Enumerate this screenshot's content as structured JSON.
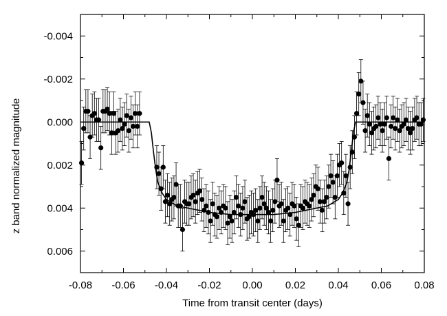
{
  "chart_data": {
    "type": "scatter",
    "xlabel": "Time from transit center (days)",
    "ylabel": "z band normalized magnitude",
    "xlim": [
      -0.08,
      0.08
    ],
    "ylim": [
      0.007,
      -0.005
    ],
    "y_inverted": true,
    "grid": false,
    "x_ticks": [
      -0.08,
      -0.06,
      -0.04,
      -0.02,
      0.0,
      0.02,
      0.04,
      0.06,
      0.08
    ],
    "x_tick_labels": [
      "-0.08",
      "-0.06",
      "-0.04",
      "-0.02",
      "0.00",
      "0.02",
      "0.04",
      "0.06",
      "0.08"
    ],
    "y_ticks": [
      -0.004,
      -0.002,
      0.0,
      0.002,
      0.004,
      0.006
    ],
    "y_tick_labels": [
      "-0.004",
      "-0.002",
      "0.000",
      "0.002",
      "0.004",
      "0.006"
    ],
    "series": [
      {
        "kind": "points_with_errorbars",
        "color": "#000000",
        "error": 0.001,
        "points": [
          [
            -0.0795,
            0.0019
          ],
          [
            -0.0785,
            0.0003
          ],
          [
            -0.0775,
            -0.0005
          ],
          [
            -0.0765,
            -0.0005
          ],
          [
            -0.0755,
            0.0007
          ],
          [
            -0.0745,
            -0.0003
          ],
          [
            -0.0735,
            -0.0004
          ],
          [
            -0.0725,
            -0.0001
          ],
          [
            -0.0715,
            -0.0001
          ],
          [
            -0.0705,
            0.0012
          ],
          [
            -0.0695,
            -0.0005
          ],
          [
            -0.0685,
            -0.0005
          ],
          [
            -0.0675,
            -0.0006
          ],
          [
            -0.0665,
            -0.0004
          ],
          [
            -0.0655,
            0.0005
          ],
          [
            -0.0645,
            -0.0004
          ],
          [
            -0.0635,
            0.0005
          ],
          [
            -0.0625,
            0.0004
          ],
          [
            -0.0615,
            -0.0001
          ],
          [
            -0.0605,
            0.0003
          ],
          [
            -0.0595,
            0.0001
          ],
          [
            -0.0585,
            -0.0003
          ],
          [
            -0.0575,
            0.0004
          ],
          [
            -0.0565,
            -0.0002
          ],
          [
            -0.0555,
            0.0002
          ],
          [
            -0.0545,
            -0.0004
          ],
          [
            -0.0535,
            0.0002
          ],
          [
            -0.0525,
            -0.0004
          ],
          [
            -0.0445,
            0.0021
          ],
          [
            -0.0435,
            0.0024
          ],
          [
            -0.0425,
            0.0031
          ],
          [
            -0.0415,
            0.0021
          ],
          [
            -0.0405,
            0.0037
          ],
          [
            -0.0395,
            0.0034
          ],
          [
            -0.0385,
            0.0038
          ],
          [
            -0.0375,
            0.0036
          ],
          [
            -0.0365,
            0.0035
          ],
          [
            -0.0355,
            0.0029
          ],
          [
            -0.0345,
            0.0039
          ],
          [
            -0.0335,
            0.0039
          ],
          [
            -0.0325,
            0.005
          ],
          [
            -0.0315,
            0.0037
          ],
          [
            -0.0305,
            0.0038
          ],
          [
            -0.0295,
            0.0038
          ],
          [
            -0.0285,
            0.0035
          ],
          [
            -0.0275,
            0.0034
          ],
          [
            -0.0265,
            0.0037
          ],
          [
            -0.0255,
            0.0033
          ],
          [
            -0.0245,
            0.0032
          ],
          [
            -0.0235,
            0.0036
          ],
          [
            -0.0225,
            0.0041
          ],
          [
            -0.0215,
            0.0039
          ],
          [
            -0.0205,
            0.0042
          ],
          [
            -0.0195,
            0.0046
          ],
          [
            -0.0185,
            0.0038
          ],
          [
            -0.0175,
            0.0043
          ],
          [
            -0.0165,
            0.0044
          ],
          [
            -0.0155,
            0.004
          ],
          [
            -0.0145,
            0.0042
          ],
          [
            -0.0135,
            0.0039
          ],
          [
            -0.0125,
            0.004
          ],
          [
            -0.0115,
            0.0047
          ],
          [
            -0.0105,
            0.0044
          ],
          [
            -0.0095,
            0.0046
          ],
          [
            -0.0085,
            0.0042
          ],
          [
            -0.0075,
            0.0035
          ],
          [
            -0.0065,
            0.0039
          ],
          [
            -0.0055,
            0.0043
          ],
          [
            -0.0045,
            0.004
          ],
          [
            -0.0035,
            0.0037
          ],
          [
            -0.0025,
            0.0045
          ],
          [
            -0.0015,
            0.0044
          ],
          [
            -0.0005,
            0.0042
          ],
          [
            0.0005,
            0.0043
          ],
          [
            0.0015,
            0.0041
          ],
          [
            0.0025,
            0.0046
          ],
          [
            0.0035,
            0.004
          ],
          [
            0.0045,
            0.0035
          ],
          [
            0.0055,
            0.0038
          ],
          [
            0.0065,
            0.004
          ],
          [
            0.0075,
            0.0042
          ],
          [
            0.0085,
            0.0046
          ],
          [
            0.0095,
            0.0041
          ],
          [
            0.0105,
            0.0037
          ],
          [
            0.0115,
            0.0027
          ],
          [
            0.0125,
            0.0039
          ],
          [
            0.0135,
            0.0038
          ],
          [
            0.0145,
            0.0046
          ],
          [
            0.0155,
            0.0041
          ],
          [
            0.0165,
            0.004
          ],
          [
            0.0175,
            0.0043
          ],
          [
            0.0185,
            0.0038
          ],
          [
            0.0195,
            0.0039
          ],
          [
            0.0205,
            0.0045
          ],
          [
            0.0215,
            0.0048
          ],
          [
            0.0225,
            0.0039
          ],
          [
            0.0235,
            0.004
          ],
          [
            0.0245,
            0.0037
          ],
          [
            0.0255,
            0.0038
          ],
          [
            0.0265,
            0.0039
          ],
          [
            0.0275,
            0.0036
          ],
          [
            0.0285,
            0.0034
          ],
          [
            0.0295,
            0.003
          ],
          [
            0.0305,
            0.0031
          ],
          [
            0.0315,
            0.0037
          ],
          [
            0.0325,
            0.0041
          ],
          [
            0.0335,
            0.0037
          ],
          [
            0.0345,
            0.0035
          ],
          [
            0.0355,
            0.003
          ],
          [
            0.0365,
            0.0025
          ],
          [
            0.0375,
            0.0028
          ],
          [
            0.0385,
            0.0035
          ],
          [
            0.0395,
            0.0025
          ],
          [
            0.0405,
            0.002
          ],
          [
            0.0415,
            0.0019
          ],
          [
            0.0425,
            0.0033
          ],
          [
            0.0435,
            0.0025
          ],
          [
            0.0445,
            0.0038
          ],
          [
            0.0455,
            0.0021
          ],
          [
            0.0465,
            0.0014
          ],
          [
            0.0475,
            0.0007
          ],
          [
            0.0485,
            -0.0004
          ],
          [
            0.0495,
            -0.0013
          ],
          [
            0.0505,
            -0.0019
          ],
          [
            0.0515,
            -0.0009
          ],
          [
            0.0525,
            0.0004
          ],
          [
            0.0535,
            -0.0003
          ],
          [
            0.0545,
            0.0001
          ],
          [
            0.0555,
            0.0005
          ],
          [
            0.0565,
            0.0003
          ],
          [
            0.0575,
            0.0002
          ],
          [
            0.0585,
            -0.0002
          ],
          [
            0.0595,
            0.0001
          ],
          [
            0.0605,
            0.0004
          ],
          [
            0.0615,
            0.0001
          ],
          [
            0.0625,
            -0.0002
          ],
          [
            0.0635,
            0.0017
          ],
          [
            0.0645,
            0.0002
          ],
          [
            0.0655,
            -0.0002
          ],
          [
            0.0665,
            0.0003
          ],
          [
            0.0675,
            -0.0001
          ],
          [
            0.0685,
            0.0004
          ],
          [
            0.0695,
            0.0002
          ],
          [
            0.0705,
            0.0001
          ],
          [
            0.0715,
            -0.0001
          ],
          [
            0.0725,
            0.0003
          ],
          [
            0.0735,
            0.0005
          ],
          [
            0.0745,
            0.0003
          ],
          [
            0.0755,
            -0.0001
          ],
          [
            0.0765,
            -0.0002
          ],
          [
            0.0775,
            0.0001
          ],
          [
            0.0785,
            0.0001
          ],
          [
            0.0795,
            -0.0001
          ]
        ]
      },
      {
        "kind": "model_line",
        "color": "#000000",
        "points": [
          [
            -0.08,
            0.0
          ],
          [
            -0.048,
            0.0
          ],
          [
            -0.047,
            0.0005
          ],
          [
            -0.046,
            0.0014
          ],
          [
            -0.045,
            0.0022
          ],
          [
            -0.044,
            0.0028
          ],
          [
            -0.042,
            0.0033
          ],
          [
            -0.04,
            0.0036
          ],
          [
            -0.035,
            0.0039
          ],
          [
            -0.03,
            0.004
          ],
          [
            -0.02,
            0.0042
          ],
          [
            -0.01,
            0.0043
          ],
          [
            0.0,
            0.0043
          ],
          [
            0.01,
            0.0043
          ],
          [
            0.02,
            0.0042
          ],
          [
            0.03,
            0.004
          ],
          [
            0.035,
            0.0039
          ],
          [
            0.04,
            0.0036
          ],
          [
            0.042,
            0.0033
          ],
          [
            0.044,
            0.0028
          ],
          [
            0.045,
            0.0022
          ],
          [
            0.046,
            0.0014
          ],
          [
            0.047,
            0.0005
          ],
          [
            0.048,
            0.0
          ],
          [
            0.08,
            0.0
          ]
        ]
      }
    ]
  }
}
